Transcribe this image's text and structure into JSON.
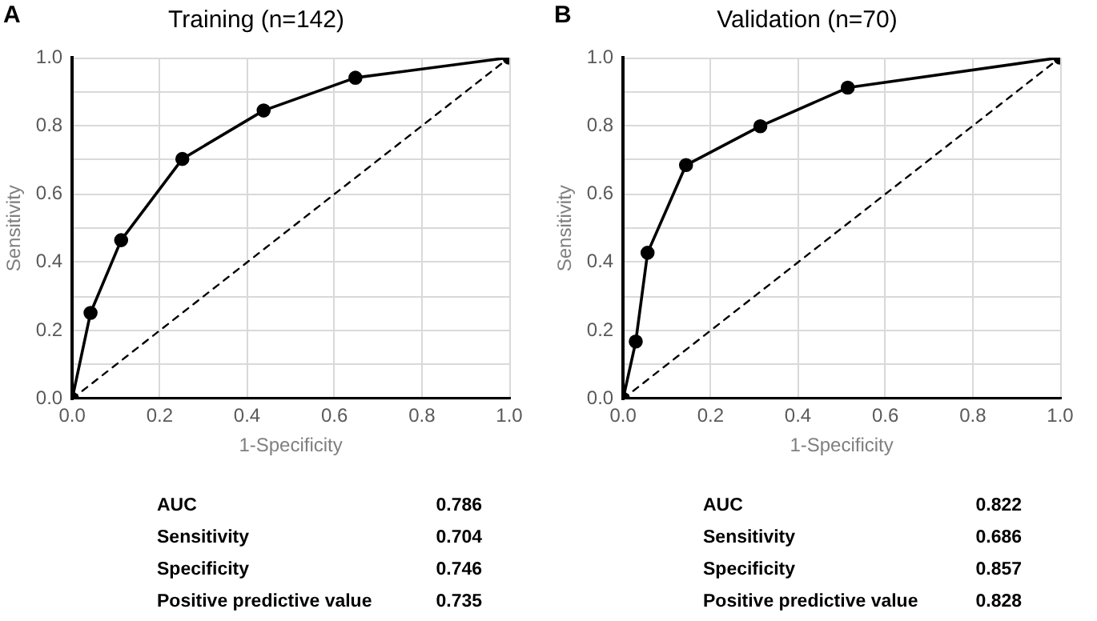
{
  "chart_data": [
    {
      "type": "line",
      "title": "Training (n=142)",
      "xlabel": "1-Specificity",
      "ylabel": "Sensitivity",
      "xlim": [
        0,
        1
      ],
      "ylim": [
        0,
        1
      ],
      "xticks": [
        {
          "value": 0,
          "label": "0.0"
        },
        {
          "value": 0.2,
          "label": "0.2"
        },
        {
          "value": 0.4,
          "label": "0.4"
        },
        {
          "value": 0.6,
          "label": "0.6"
        },
        {
          "value": 0.8,
          "label": "0.8"
        },
        {
          "value": 1,
          "label": "1.0"
        }
      ],
      "yticks": [
        {
          "value": 0,
          "label": "0.0"
        },
        {
          "value": 0.2,
          "label": "0.2"
        },
        {
          "value": 0.4,
          "label": "0.4"
        },
        {
          "value": 0.6,
          "label": "0.6"
        },
        {
          "value": 0.8,
          "label": "0.8"
        },
        {
          "value": 1,
          "label": "1.0"
        }
      ],
      "grid": true,
      "legend": false,
      "series": [
        {
          "color": "#000000",
          "marker": "circle",
          "line_style": "solid",
          "x": [
            0,
            0.042,
            0.112,
            0.252,
            0.438,
            0.648,
            1
          ],
          "values": [
            0,
            0.252,
            0.465,
            0.703,
            0.845,
            0.941,
            1
          ]
        },
        {
          "color": "#000000",
          "marker": "none",
          "line_style": "dashed",
          "x": [
            0,
            1
          ],
          "values": [
            0,
            1
          ]
        }
      ],
      "annotations": [
        "A",
        "AUC",
        "0.786",
        "Sensitivity",
        "0.704",
        "Specificity",
        "0.746",
        "Positive predictive value",
        "0.735"
      ]
    },
    {
      "type": "line",
      "title": "Validation (n=70)",
      "xlabel": "1-Specificity",
      "ylabel": "Sensitivity",
      "xlim": [
        0,
        1
      ],
      "ylim": [
        0,
        1
      ],
      "xticks": [
        {
          "value": 0,
          "label": "0.0"
        },
        {
          "value": 0.2,
          "label": "0.2"
        },
        {
          "value": 0.4,
          "label": "0.4"
        },
        {
          "value": 0.6,
          "label": "0.6"
        },
        {
          "value": 0.8,
          "label": "0.8"
        },
        {
          "value": 1,
          "label": "1.0"
        }
      ],
      "yticks": [
        {
          "value": 0,
          "label": "0.0"
        },
        {
          "value": 0.2,
          "label": "0.2"
        },
        {
          "value": 0.4,
          "label": "0.4"
        },
        {
          "value": 0.6,
          "label": "0.6"
        },
        {
          "value": 0.8,
          "label": "0.8"
        },
        {
          "value": 1,
          "label": "1.0"
        }
      ],
      "grid": true,
      "legend": false,
      "series": [
        {
          "color": "#000000",
          "marker": "circle",
          "line_style": "solid",
          "x": [
            0,
            0.029,
            0.056,
            0.144,
            0.314,
            0.514,
            1
          ],
          "values": [
            0,
            0.168,
            0.428,
            0.685,
            0.799,
            0.912,
            1
          ]
        },
        {
          "color": "#000000",
          "marker": "none",
          "line_style": "dashed",
          "x": [
            0,
            1
          ],
          "values": [
            0,
            1
          ]
        }
      ],
      "annotations": [
        "B",
        "AUC",
        "0.822",
        "Sensitivity",
        "0.686",
        "Specificity",
        "0.857",
        "Positive predictive value",
        "0.828"
      ]
    }
  ]
}
